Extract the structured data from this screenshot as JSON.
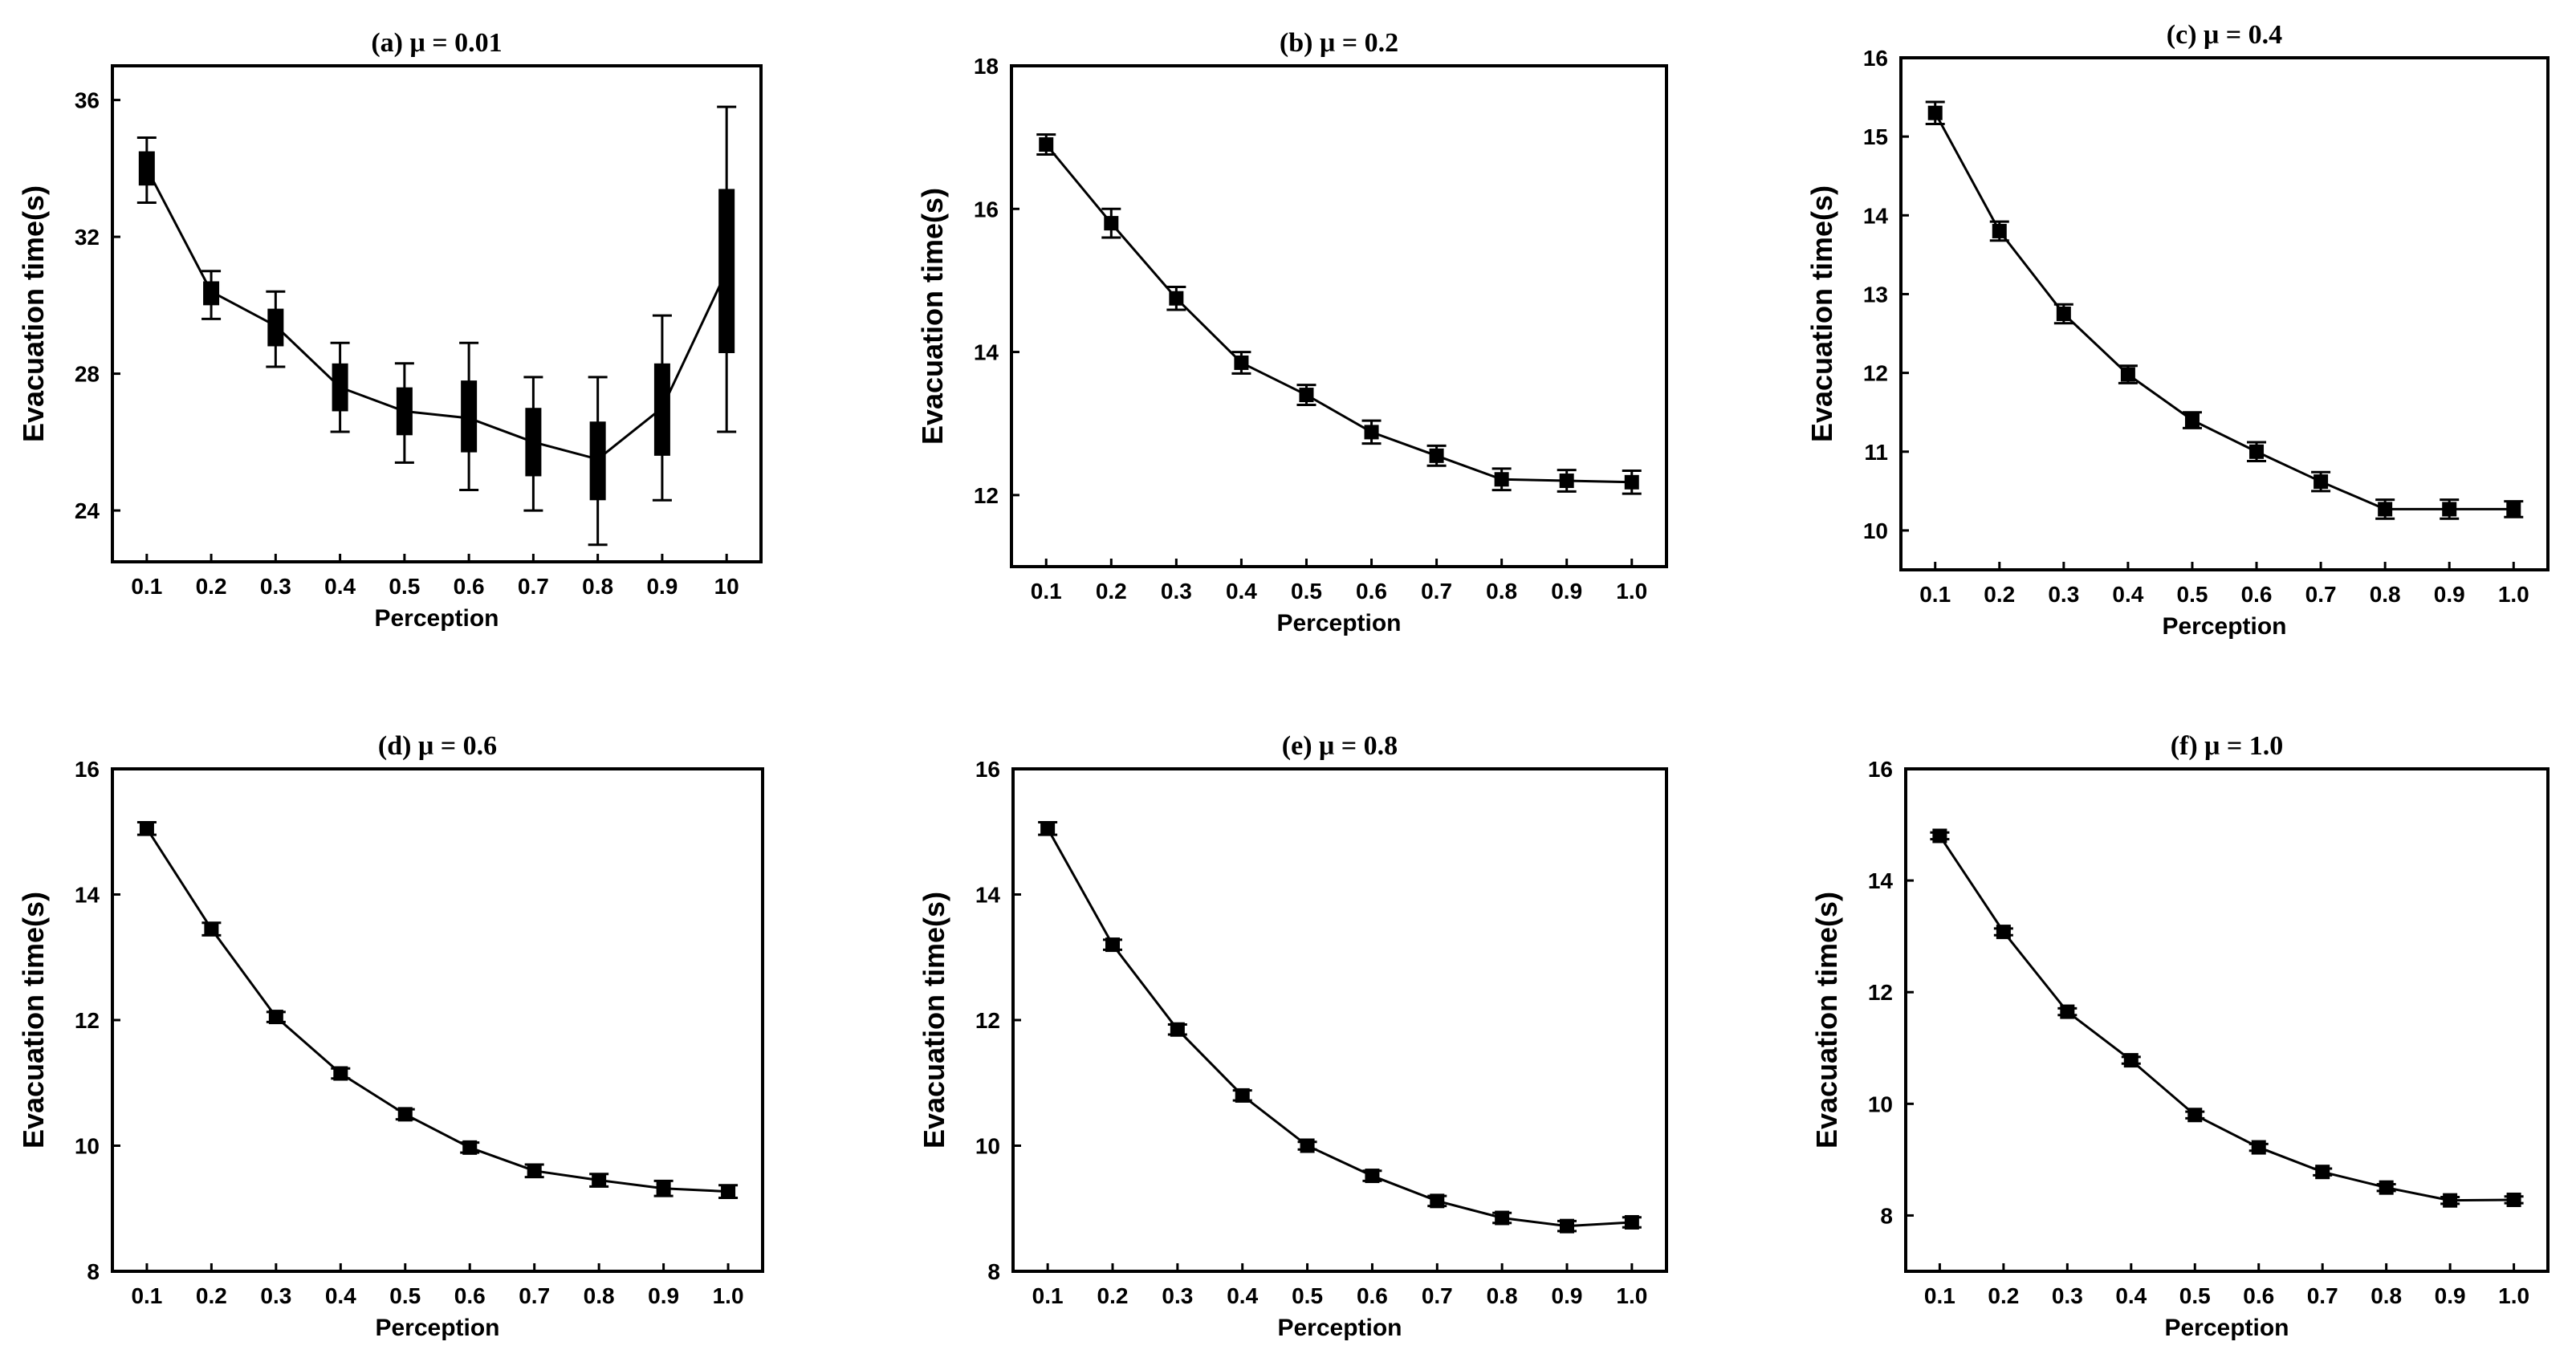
{
  "chart_data": [
    {
      "type": "line",
      "title": "(a) μ = 0.01",
      "xlabel": "Perception",
      "ylabel": "Evacuation time(s)",
      "categories": [
        "0.1",
        "0.2",
        "0.3",
        "0.4",
        "0.5",
        "0.6",
        "0.7",
        "0.8",
        "0.9",
        "10"
      ],
      "ylim": [
        22.5,
        37
      ],
      "yticks": [
        "24",
        "28",
        "32",
        "36"
      ],
      "series": [
        {
          "name": "mean",
          "values": [
            34.0,
            30.4,
            29.4,
            27.6,
            26.9,
            26.7,
            26.0,
            25.5,
            27.0,
            31.0
          ],
          "box_low": [
            33.5,
            30.0,
            28.8,
            26.9,
            26.2,
            25.7,
            25.0,
            24.3,
            25.6,
            28.6
          ],
          "box_high": [
            34.5,
            30.7,
            29.9,
            28.3,
            27.6,
            27.8,
            27.0,
            26.6,
            28.3,
            33.4
          ],
          "err_low": [
            33.0,
            29.6,
            28.2,
            26.3,
            25.4,
            24.6,
            24.0,
            23.0,
            24.3,
            26.3
          ],
          "err_high": [
            34.9,
            31.0,
            30.4,
            28.9,
            28.3,
            28.9,
            27.9,
            27.9,
            29.7,
            35.8
          ]
        }
      ]
    },
    {
      "type": "line",
      "title": "(b) μ = 0.2",
      "xlabel": "Perception",
      "ylabel": "Evacuation time(s)",
      "categories": [
        "0.1",
        "0.2",
        "0.3",
        "0.4",
        "0.5",
        "0.6",
        "0.7",
        "0.8",
        "0.9",
        "1.0"
      ],
      "ylim": [
        11,
        18
      ],
      "yticks": [
        "12",
        "14",
        "16",
        "18"
      ],
      "series": [
        {
          "name": "mean",
          "values": [
            16.9,
            15.8,
            14.75,
            13.85,
            13.4,
            12.88,
            12.55,
            12.22,
            12.2,
            12.18
          ],
          "err": [
            0.14,
            0.2,
            0.16,
            0.15,
            0.14,
            0.16,
            0.14,
            0.15,
            0.15,
            0.16
          ]
        }
      ]
    },
    {
      "type": "line",
      "title": "(c) μ = 0.4",
      "xlabel": "Perception",
      "ylabel": "Evacuation time(s)",
      "categories": [
        "0.1",
        "0.2",
        "0.3",
        "0.4",
        "0.5",
        "0.6",
        "0.7",
        "0.8",
        "0.9",
        "1.0"
      ],
      "ylim": [
        9.5,
        16
      ],
      "yticks": [
        "10",
        "11",
        "12",
        "13",
        "14",
        "15",
        "16"
      ],
      "series": [
        {
          "name": "mean",
          "values": [
            15.3,
            13.8,
            12.75,
            11.98,
            11.4,
            11.0,
            10.62,
            10.27,
            10.27,
            10.27
          ],
          "err": [
            0.14,
            0.12,
            0.12,
            0.11,
            0.1,
            0.12,
            0.12,
            0.12,
            0.12,
            0.1
          ]
        }
      ]
    },
    {
      "type": "line",
      "title": "(d) μ = 0.6",
      "xlabel": "Perception",
      "ylabel": "Evacuation time(s)",
      "categories": [
        "0.1",
        "0.2",
        "0.3",
        "0.4",
        "0.5",
        "0.6",
        "0.7",
        "0.8",
        "0.9",
        "1.0"
      ],
      "ylim": [
        8,
        16
      ],
      "yticks": [
        "8",
        "10",
        "12",
        "14",
        "16"
      ],
      "series": [
        {
          "name": "mean",
          "values": [
            15.05,
            13.45,
            12.05,
            11.15,
            10.5,
            9.97,
            9.6,
            9.45,
            9.32,
            9.27
          ],
          "err": [
            0.1,
            0.1,
            0.08,
            0.08,
            0.08,
            0.08,
            0.1,
            0.1,
            0.12,
            0.1
          ]
        }
      ]
    },
    {
      "type": "line",
      "title": "(e) μ = 0.8",
      "xlabel": "Perception",
      "ylabel": "Evacuation time(s)",
      "categories": [
        "0.1",
        "0.2",
        "0.3",
        "0.4",
        "0.5",
        "0.6",
        "0.7",
        "0.8",
        "0.9",
        "1.0"
      ],
      "ylim": [
        8,
        16
      ],
      "yticks": [
        "8",
        "10",
        "12",
        "14",
        "16"
      ],
      "series": [
        {
          "name": "mean",
          "values": [
            15.05,
            13.2,
            11.85,
            10.8,
            10.0,
            9.52,
            9.12,
            8.85,
            8.72,
            8.78
          ],
          "err": [
            0.1,
            0.08,
            0.08,
            0.08,
            0.06,
            0.08,
            0.08,
            0.08,
            0.08,
            0.08
          ]
        }
      ]
    },
    {
      "type": "line",
      "title": "(f) μ = 1.0",
      "xlabel": "Perception",
      "ylabel": "Evacuation time(s)",
      "categories": [
        "0.1",
        "0.2",
        "0.3",
        "0.4",
        "0.5",
        "0.6",
        "0.7",
        "0.8",
        "0.9",
        "1.0"
      ],
      "ylim": [
        7,
        16
      ],
      "yticks": [
        "8",
        "10",
        "12",
        "14",
        "16"
      ],
      "series": [
        {
          "name": "mean",
          "values": [
            14.8,
            13.08,
            11.65,
            10.78,
            9.8,
            9.22,
            8.78,
            8.5,
            8.27,
            8.28
          ],
          "err": [
            0.06,
            0.06,
            0.06,
            0.06,
            0.06,
            0.06,
            0.06,
            0.06,
            0.06,
            0.06
          ]
        }
      ]
    }
  ]
}
